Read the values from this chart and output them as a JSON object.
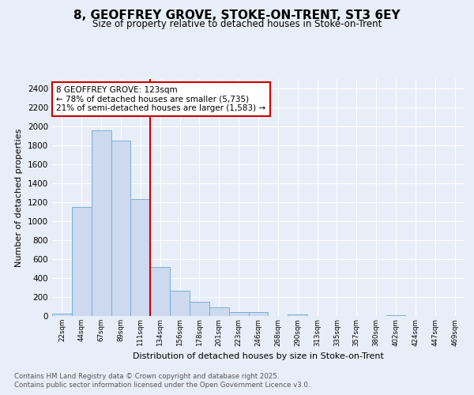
{
  "title_line1": "8, GEOFFREY GROVE, STOKE-ON-TRENT, ST3 6EY",
  "title_line2": "Size of property relative to detached houses in Stoke-on-Trent",
  "xlabel": "Distribution of detached houses by size in Stoke-on-Trent",
  "ylabel": "Number of detached properties",
  "footer_line1": "Contains HM Land Registry data © Crown copyright and database right 2025.",
  "footer_line2": "Contains public sector information licensed under the Open Government Licence v3.0.",
  "bins": [
    "22sqm",
    "44sqm",
    "67sqm",
    "89sqm",
    "111sqm",
    "134sqm",
    "156sqm",
    "178sqm",
    "201sqm",
    "223sqm",
    "246sqm",
    "268sqm",
    "290sqm",
    "313sqm",
    "335sqm",
    "357sqm",
    "380sqm",
    "402sqm",
    "424sqm",
    "447sqm",
    "469sqm"
  ],
  "values": [
    25,
    1150,
    1960,
    1850,
    1230,
    515,
    270,
    150,
    88,
    45,
    38,
    0,
    18,
    3,
    0,
    0,
    0,
    8,
    0,
    0,
    0
  ],
  "bar_color": "#ccd9ee",
  "bar_edge_color": "#7bafd4",
  "property_line_x": 4.5,
  "property_line_color": "#cc0000",
  "annotation_text_line1": "8 GEOFFREY GROVE: 123sqm",
  "annotation_text_line2": "← 78% of detached houses are smaller (5,735)",
  "annotation_text_line3": "21% of semi-detached houses are larger (1,583) →",
  "annotation_box_color": "#ffffff",
  "annotation_box_edge": "#cc0000",
  "ylim": [
    0,
    2500
  ],
  "yticks": [
    0,
    200,
    400,
    600,
    800,
    1000,
    1200,
    1400,
    1600,
    1800,
    2000,
    2200,
    2400
  ],
  "background_color": "#e8eef8",
  "grid_color": "#ffffff"
}
